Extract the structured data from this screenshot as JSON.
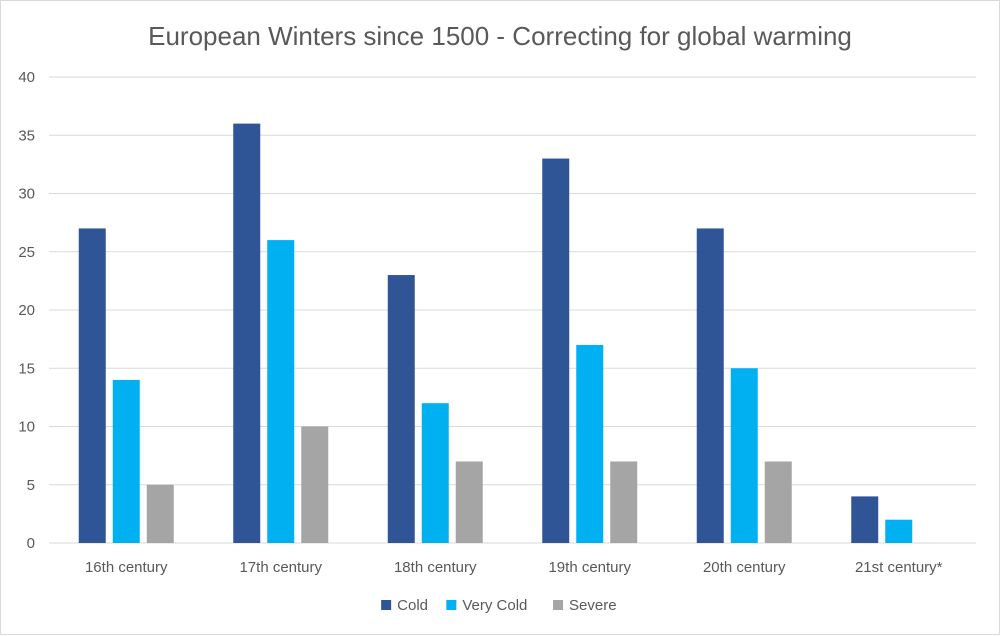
{
  "chart_data": {
    "type": "bar",
    "title": "European Winters since 1500 - Correcting for global warming",
    "categories": [
      "16th century",
      "17th century",
      "18th century",
      "19th century",
      "20th century",
      "21st century*"
    ],
    "series": [
      {
        "name": "Cold",
        "color": "#2F5597",
        "values": [
          27,
          36,
          23,
          33,
          27,
          4
        ]
      },
      {
        "name": "Very Cold",
        "color": "#00B0F0",
        "values": [
          14,
          26,
          12,
          17,
          15,
          2
        ]
      },
      {
        "name": "Severe",
        "color": "#A5A5A5",
        "values": [
          5,
          10,
          7,
          7,
          7,
          null
        ]
      }
    ],
    "ylim": [
      0,
      40
    ],
    "yticks": [
      0,
      5,
      10,
      15,
      20,
      25,
      30,
      35,
      40
    ],
    "grid": true,
    "legend_position": "bottom"
  }
}
